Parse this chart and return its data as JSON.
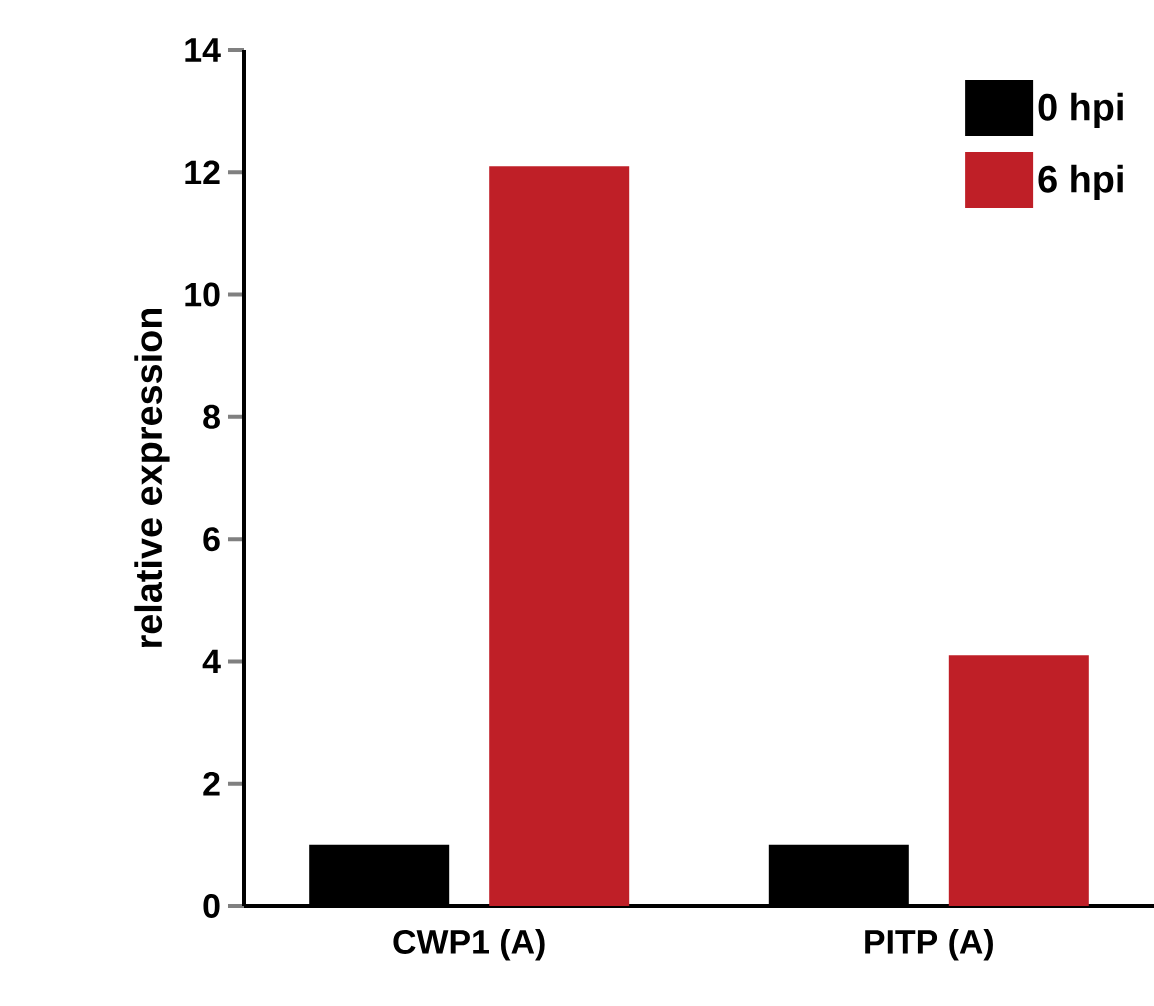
{
  "chart_data": {
    "type": "bar",
    "ylabel": "relative expression",
    "categories": [
      "CWP1 (A)",
      "PITP (A)"
    ],
    "series": [
      {
        "name": "0 hpi",
        "color": "#000000",
        "values": [
          1.0,
          1.0
        ]
      },
      {
        "name": "6 hpi",
        "color": "#bf1f27",
        "values": [
          12.1,
          4.1
        ]
      }
    ],
    "ylim": [
      0,
      14
    ],
    "yticks": [
      0,
      2,
      4,
      6,
      8,
      10,
      12,
      14
    ],
    "grid": false,
    "legend": "top right"
  }
}
